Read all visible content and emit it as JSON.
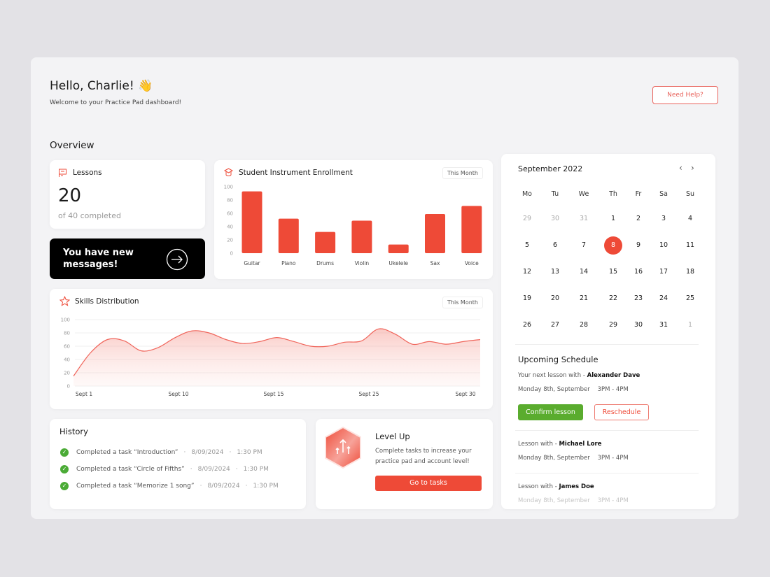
{
  "header": {
    "greeting": "Hello, Charlie!",
    "wave_emoji": "👋",
    "subtitle": "Welcome to your Practice Pad dashboard!",
    "help_label": "Need Help?"
  },
  "overview": {
    "title": "Overview"
  },
  "lessons": {
    "title": "Lessons",
    "count": "20",
    "caption": "of 40 completed",
    "icon": "lessons-icon"
  },
  "messages": {
    "text": "You have new messages!",
    "icon": "arrow-right-circle-icon"
  },
  "colors": {
    "accent": "#ee4a37",
    "success": "#5aac2e",
    "dark": "#000000"
  },
  "chart_data": [
    {
      "type": "bar",
      "title": "Student Instrument Enrollment",
      "filter": "This Month",
      "categories": [
        "Guitar",
        "Piano",
        "Drums",
        "Violin",
        "Ukelele",
        "Sax",
        "Voice"
      ],
      "values": [
        93,
        52,
        32,
        49,
        13,
        59,
        71
      ],
      "ylim": [
        0,
        100
      ],
      "yticks": [
        0,
        20,
        40,
        60,
        80,
        100
      ],
      "grid": false
    },
    {
      "type": "area",
      "title": "Skills Distribution",
      "filter": "This Month",
      "x_ticks": [
        "Sept 1",
        "Sept 10",
        "Sept 15",
        "Sept 25",
        "Sept 30"
      ],
      "values": [
        15,
        50,
        70,
        68,
        53,
        58,
        73,
        83,
        80,
        70,
        64,
        67,
        73,
        67,
        60,
        60,
        66,
        68,
        86,
        78,
        63,
        67,
        63,
        67,
        70
      ],
      "ylim": [
        0,
        100
      ],
      "yticks": [
        0,
        20,
        40,
        60,
        80,
        100
      ],
      "grid": true
    }
  ],
  "history": {
    "title": "History",
    "items": [
      {
        "text": "Completed a task “Introduction”",
        "date": "8/09/2024",
        "time": "1:30 PM"
      },
      {
        "text": "Completed a task “Circle of Fifths”",
        "date": "8/09/2024",
        "time": "1:30 PM"
      },
      {
        "text": "Completed a task “Memorize 1 song”",
        "date": "8/09/2024",
        "time": "1:30 PM"
      }
    ]
  },
  "levelup": {
    "title": "Level Up",
    "text": "Complete tasks to increase your practice pad and account level!",
    "button": "Go to tasks"
  },
  "calendar": {
    "month": "September 2022",
    "weekdays": [
      "Mo",
      "Tu",
      "We",
      "Th",
      "Fr",
      "Sa",
      "Su"
    ],
    "weeks": [
      [
        "29",
        "30",
        "31",
        "1",
        "2",
        "3",
        "4"
      ],
      [
        "5",
        "6",
        "7",
        "8",
        "9",
        "10",
        "11"
      ],
      [
        "12",
        "13",
        "14",
        "15",
        "16",
        "17",
        "18"
      ],
      [
        "19",
        "20",
        "21",
        "22",
        "23",
        "24",
        "25"
      ],
      [
        "26",
        "27",
        "28",
        "29",
        "30",
        "31",
        "1"
      ]
    ],
    "selected": "8"
  },
  "schedule": {
    "title": "Upcoming Schedule",
    "next_prefix": "Your next lesson with - ",
    "next_name": "Alexander Dave",
    "next_date": "Monday 8th, September",
    "next_time": "3PM - 4PM",
    "confirm": "Confirm lesson",
    "reschedule": "Reschedule",
    "items": [
      {
        "prefix": "Lesson with - ",
        "name": "Michael Lore",
        "date": "Monday 8th, September",
        "time": "3PM - 4PM"
      },
      {
        "prefix": "Lesson with - ",
        "name": "James Doe",
        "date": "Monday 8th, September",
        "time": "3PM - 4PM"
      }
    ]
  }
}
